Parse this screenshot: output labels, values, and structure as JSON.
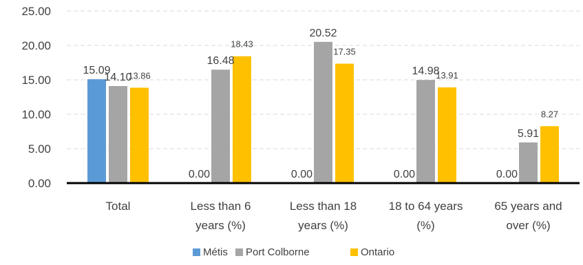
{
  "chart_data": {
    "type": "bar",
    "title": "",
    "xlabel": "",
    "ylabel": "",
    "ylim": [
      0,
      25
    ],
    "yticks": [
      "0.00",
      "5.00",
      "10.00",
      "15.00",
      "20.00",
      "25.00"
    ],
    "grid": true,
    "legend_position": "bottom",
    "categories": [
      [
        "Total"
      ],
      [
        "Less than 6",
        "years (%)"
      ],
      [
        "Less than 18",
        "years (%)"
      ],
      [
        "18 to 64 years",
        "(%)"
      ],
      [
        "65 years and",
        "over (%)"
      ]
    ],
    "series": [
      {
        "name": "Métis",
        "color": "#5B9BD5",
        "values": [
          15.09,
          0.0,
          0.0,
          0.0,
          0.0
        ],
        "labels": [
          "15.09",
          "0.00",
          "0.00",
          "0.00",
          "0.00"
        ]
      },
      {
        "name": "Port Colborne",
        "color": "#A5A5A5",
        "values": [
          14.1,
          16.48,
          20.52,
          14.98,
          5.91
        ],
        "labels": [
          "14.10",
          "16.48",
          "20.52",
          "14.98",
          "5.91"
        ]
      },
      {
        "name": "Ontario",
        "color": "#FFC000",
        "values": [
          13.86,
          18.43,
          17.35,
          13.91,
          8.27
        ],
        "labels": [
          "13.86",
          "18.43",
          "17.35",
          "13.91",
          "8.27"
        ]
      }
    ]
  }
}
